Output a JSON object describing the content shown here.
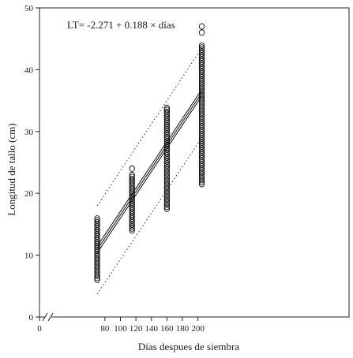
{
  "chart_data": {
    "type": "scatter",
    "equation": "LT= -2.271 + 0.188 × días",
    "xlabel": "Días despues de siembra",
    "ylabel": "Longitud de tallo (cm)",
    "xlim": [
      0,
      210
    ],
    "ylim": [
      0,
      50
    ],
    "x_axis_break": true,
    "x_ticks": [
      0,
      80,
      100,
      120,
      140,
      160,
      180,
      200
    ],
    "x_tick_labels": [
      "0",
      "80",
      "100",
      "120",
      "140",
      "160",
      "180",
      "200"
    ],
    "y_ticks": [
      0,
      10,
      20,
      30,
      40,
      50
    ],
    "y_tick_labels": [
      "0",
      "10",
      "20",
      "30",
      "40",
      "50"
    ],
    "grid": false,
    "marker": "open circle",
    "point_groups": [
      {
        "x": 70,
        "y_min": 6.0,
        "y_max": 16.0,
        "outliers": []
      },
      {
        "x": 115,
        "y_min": 14.0,
        "y_max": 23.0,
        "outliers": [
          24.0
        ]
      },
      {
        "x": 160,
        "y_min": 17.5,
        "y_max": 34.0,
        "outliers": []
      },
      {
        "x": 205,
        "y_min": 21.5,
        "y_max": 44.0,
        "outliers": [
          46.0,
          47.0
        ]
      }
    ],
    "regression_line": {
      "x": [
        70,
        205
      ],
      "y": [
        10.89,
        36.27
      ],
      "style": "solid"
    },
    "confidence_band_lower": {
      "x": [
        70,
        205
      ],
      "y": [
        10.35,
        35.75
      ],
      "style": "solid"
    },
    "confidence_band_upper": {
      "x": [
        70,
        205
      ],
      "y": [
        11.45,
        36.8
      ],
      "style": "solid"
    },
    "prediction_band_lower": {
      "x": [
        70,
        205
      ],
      "y": [
        3.7,
        29.0
      ],
      "style": "dotted"
    },
    "prediction_band_upper": {
      "x": [
        70,
        205
      ],
      "y": [
        18.0,
        43.5
      ],
      "style": "dotted"
    }
  }
}
